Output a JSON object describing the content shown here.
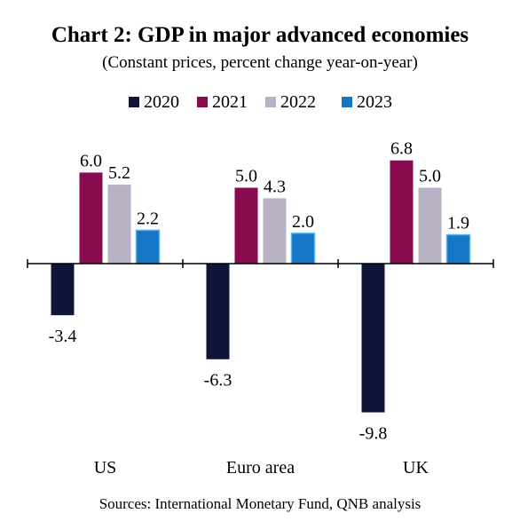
{
  "chart_data": {
    "type": "bar",
    "title": "Chart 2: GDP in major advanced economies",
    "subtitle": "(Constant prices, percent change year-on-year)",
    "source": "Sources: International Monetary Fund, QNB analysis",
    "categories": [
      "US",
      "Euro area",
      "UK"
    ],
    "series": [
      {
        "name": "2020",
        "color": "#0e1638",
        "values": [
          -3.4,
          -6.3,
          -9.8
        ],
        "labels": [
          "-3.4",
          "-6.3",
          "-9.8"
        ]
      },
      {
        "name": "2021",
        "color": "#8a0a50",
        "values": [
          6.0,
          5.0,
          6.8
        ],
        "labels": [
          "6.0",
          "5.0",
          "6.8"
        ]
      },
      {
        "name": "2022",
        "color": "#b9b2c4",
        "values": [
          5.2,
          4.3,
          5.0
        ],
        "labels": [
          "5.2",
          "4.3",
          "5.0"
        ]
      },
      {
        "name": "2023",
        "color": "#1775c5",
        "values": [
          2.2,
          2.0,
          1.9
        ],
        "labels": [
          "2.2",
          "2.0",
          "1.9"
        ]
      }
    ],
    "ylim": [
      -12,
      9
    ],
    "legend_position": "top",
    "grid": false
  }
}
